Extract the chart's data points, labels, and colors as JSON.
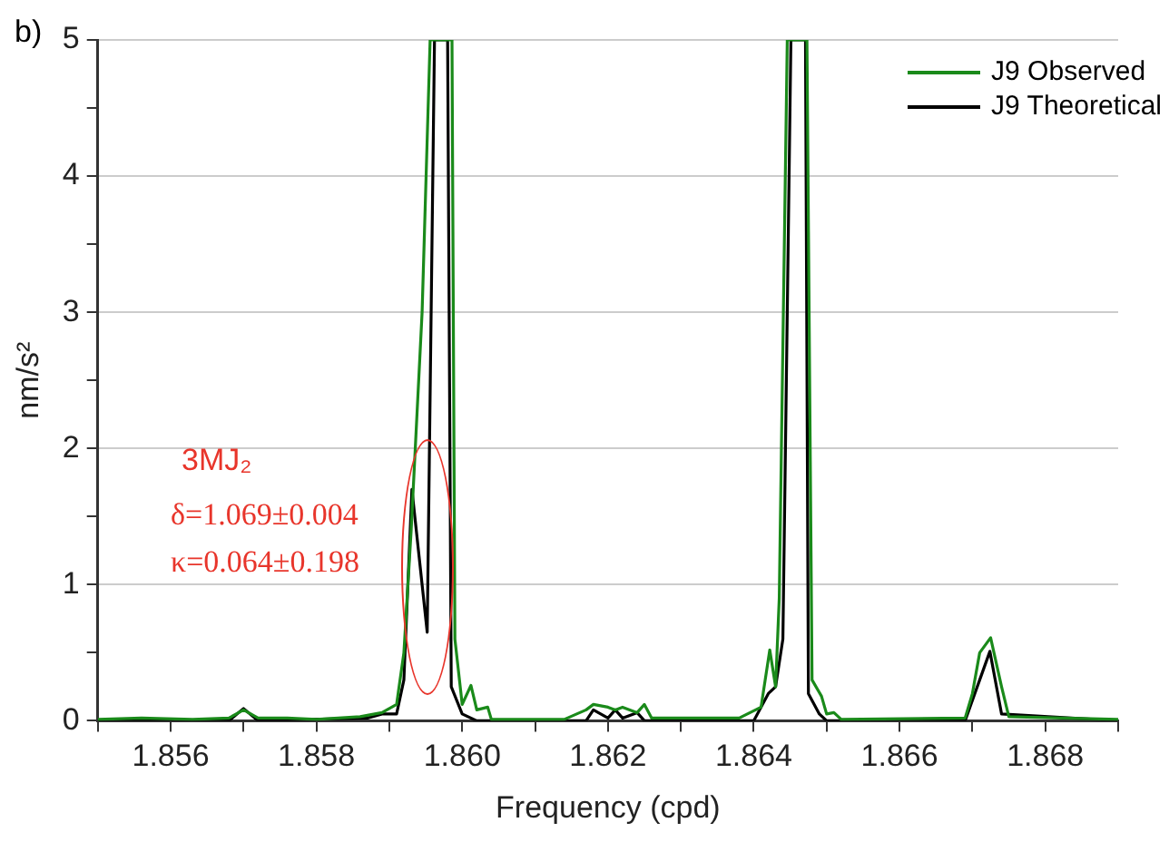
{
  "chart_data": {
    "type": "line",
    "xlabel": "Frequency (cpd)",
    "ylabel": "nm/s²",
    "annotations": [
      "b)",
      "3MJ₂",
      "δ=1.069±0.004",
      "κ=0.064±0.198"
    ],
    "xlim": [
      1.855,
      1.869
    ],
    "xticks": [
      {
        "value": 1.855,
        "label": null
      },
      1.856,
      {
        "value": 1.857,
        "label": null
      },
      1.858,
      {
        "value": 1.859,
        "label": null
      },
      "1.860",
      {
        "value": 1.861,
        "label": null
      },
      1.862,
      {
        "value": 1.863,
        "label": null
      },
      1.864,
      {
        "value": 1.865,
        "label": null
      },
      1.866,
      {
        "value": 1.867,
        "label": null
      },
      1.868,
      {
        "value": 1.869,
        "label": null
      }
    ],
    "ylim": [
      0,
      5
    ],
    "yticks": [
      0,
      {
        "value": 0.5,
        "label": null
      },
      1,
      {
        "value": 1.5,
        "label": null
      },
      2,
      {
        "value": 2.5,
        "label": null
      },
      3,
      {
        "value": 3.5,
        "label": null
      },
      4,
      {
        "value": 4.5,
        "label": null
      },
      5
    ],
    "grid": "y",
    "legend": "top right",
    "line_style": "solid",
    "marker": "none",
    "series": [
      {
        "name": "J9 Observed",
        "color": "#1a8a1a",
        "x": [
          1.855,
          1.8556,
          1.8563,
          1.8568,
          1.857,
          1.8572,
          1.8576,
          1.858,
          1.8586,
          1.8589,
          1.8591,
          1.8592,
          1.8593,
          1.85945,
          1.85956,
          1.85986,
          1.8599,
          1.86,
          1.86012,
          1.8602,
          1.86035,
          1.8604,
          1.8614,
          1.8617,
          1.8618,
          1.862,
          1.8621,
          1.8622,
          1.8624,
          1.8625,
          1.8626,
          1.8638,
          1.8641,
          1.86422,
          1.8643,
          1.86435,
          1.86446,
          1.86473,
          1.8648,
          1.86493,
          1.865,
          1.8651,
          1.8652,
          1.8669,
          1.867,
          1.8671,
          1.86725,
          1.8674,
          1.8675,
          1.869
        ],
        "values": [
          0.01,
          0.02,
          0.01,
          0.02,
          0.08,
          0.02,
          0.02,
          0.01,
          0.03,
          0.06,
          0.12,
          0.5,
          1.4,
          3,
          5,
          5,
          0.6,
          0.12,
          0.26,
          0.08,
          0.1,
          0.01,
          0.01,
          0.08,
          0.12,
          0.1,
          0.08,
          0.1,
          0.06,
          0.12,
          0.02,
          0.02,
          0.1,
          0.52,
          0.25,
          0.9,
          5,
          5,
          0.3,
          0.18,
          0.05,
          0.06,
          0.01,
          0.02,
          0.2,
          0.5,
          0.61,
          0.25,
          0.03,
          0.01
        ]
      },
      {
        "name": "J9 Theoretical",
        "color": "#000000",
        "x": [
          1.855,
          1.8568,
          1.857,
          1.8572,
          1.8587,
          1.8589,
          1.8591,
          1.8592,
          1.85931,
          1.85952,
          1.85962,
          1.8598,
          1.85985,
          1.86,
          1.8602,
          1.8617,
          1.8618,
          1.862,
          1.8621,
          1.8622,
          1.8624,
          1.8625,
          1.864,
          1.8642,
          1.8643,
          1.8644,
          1.86451,
          1.86471,
          1.86475,
          1.8649,
          1.865,
          1.8669,
          1.8671,
          1.86724,
          1.8674,
          1.869
        ],
        "values": [
          0,
          0,
          0.09,
          0,
          0.02,
          0.05,
          0.05,
          0.3,
          1.7,
          0.65,
          5,
          5,
          0.25,
          0.05,
          0,
          0,
          0.08,
          0.02,
          0.08,
          0.02,
          0.06,
          0,
          0,
          0.2,
          0.25,
          0.6,
          5,
          5,
          0.2,
          0.05,
          0,
          0,
          0.3,
          0.51,
          0.05,
          0
        ]
      }
    ]
  }
}
